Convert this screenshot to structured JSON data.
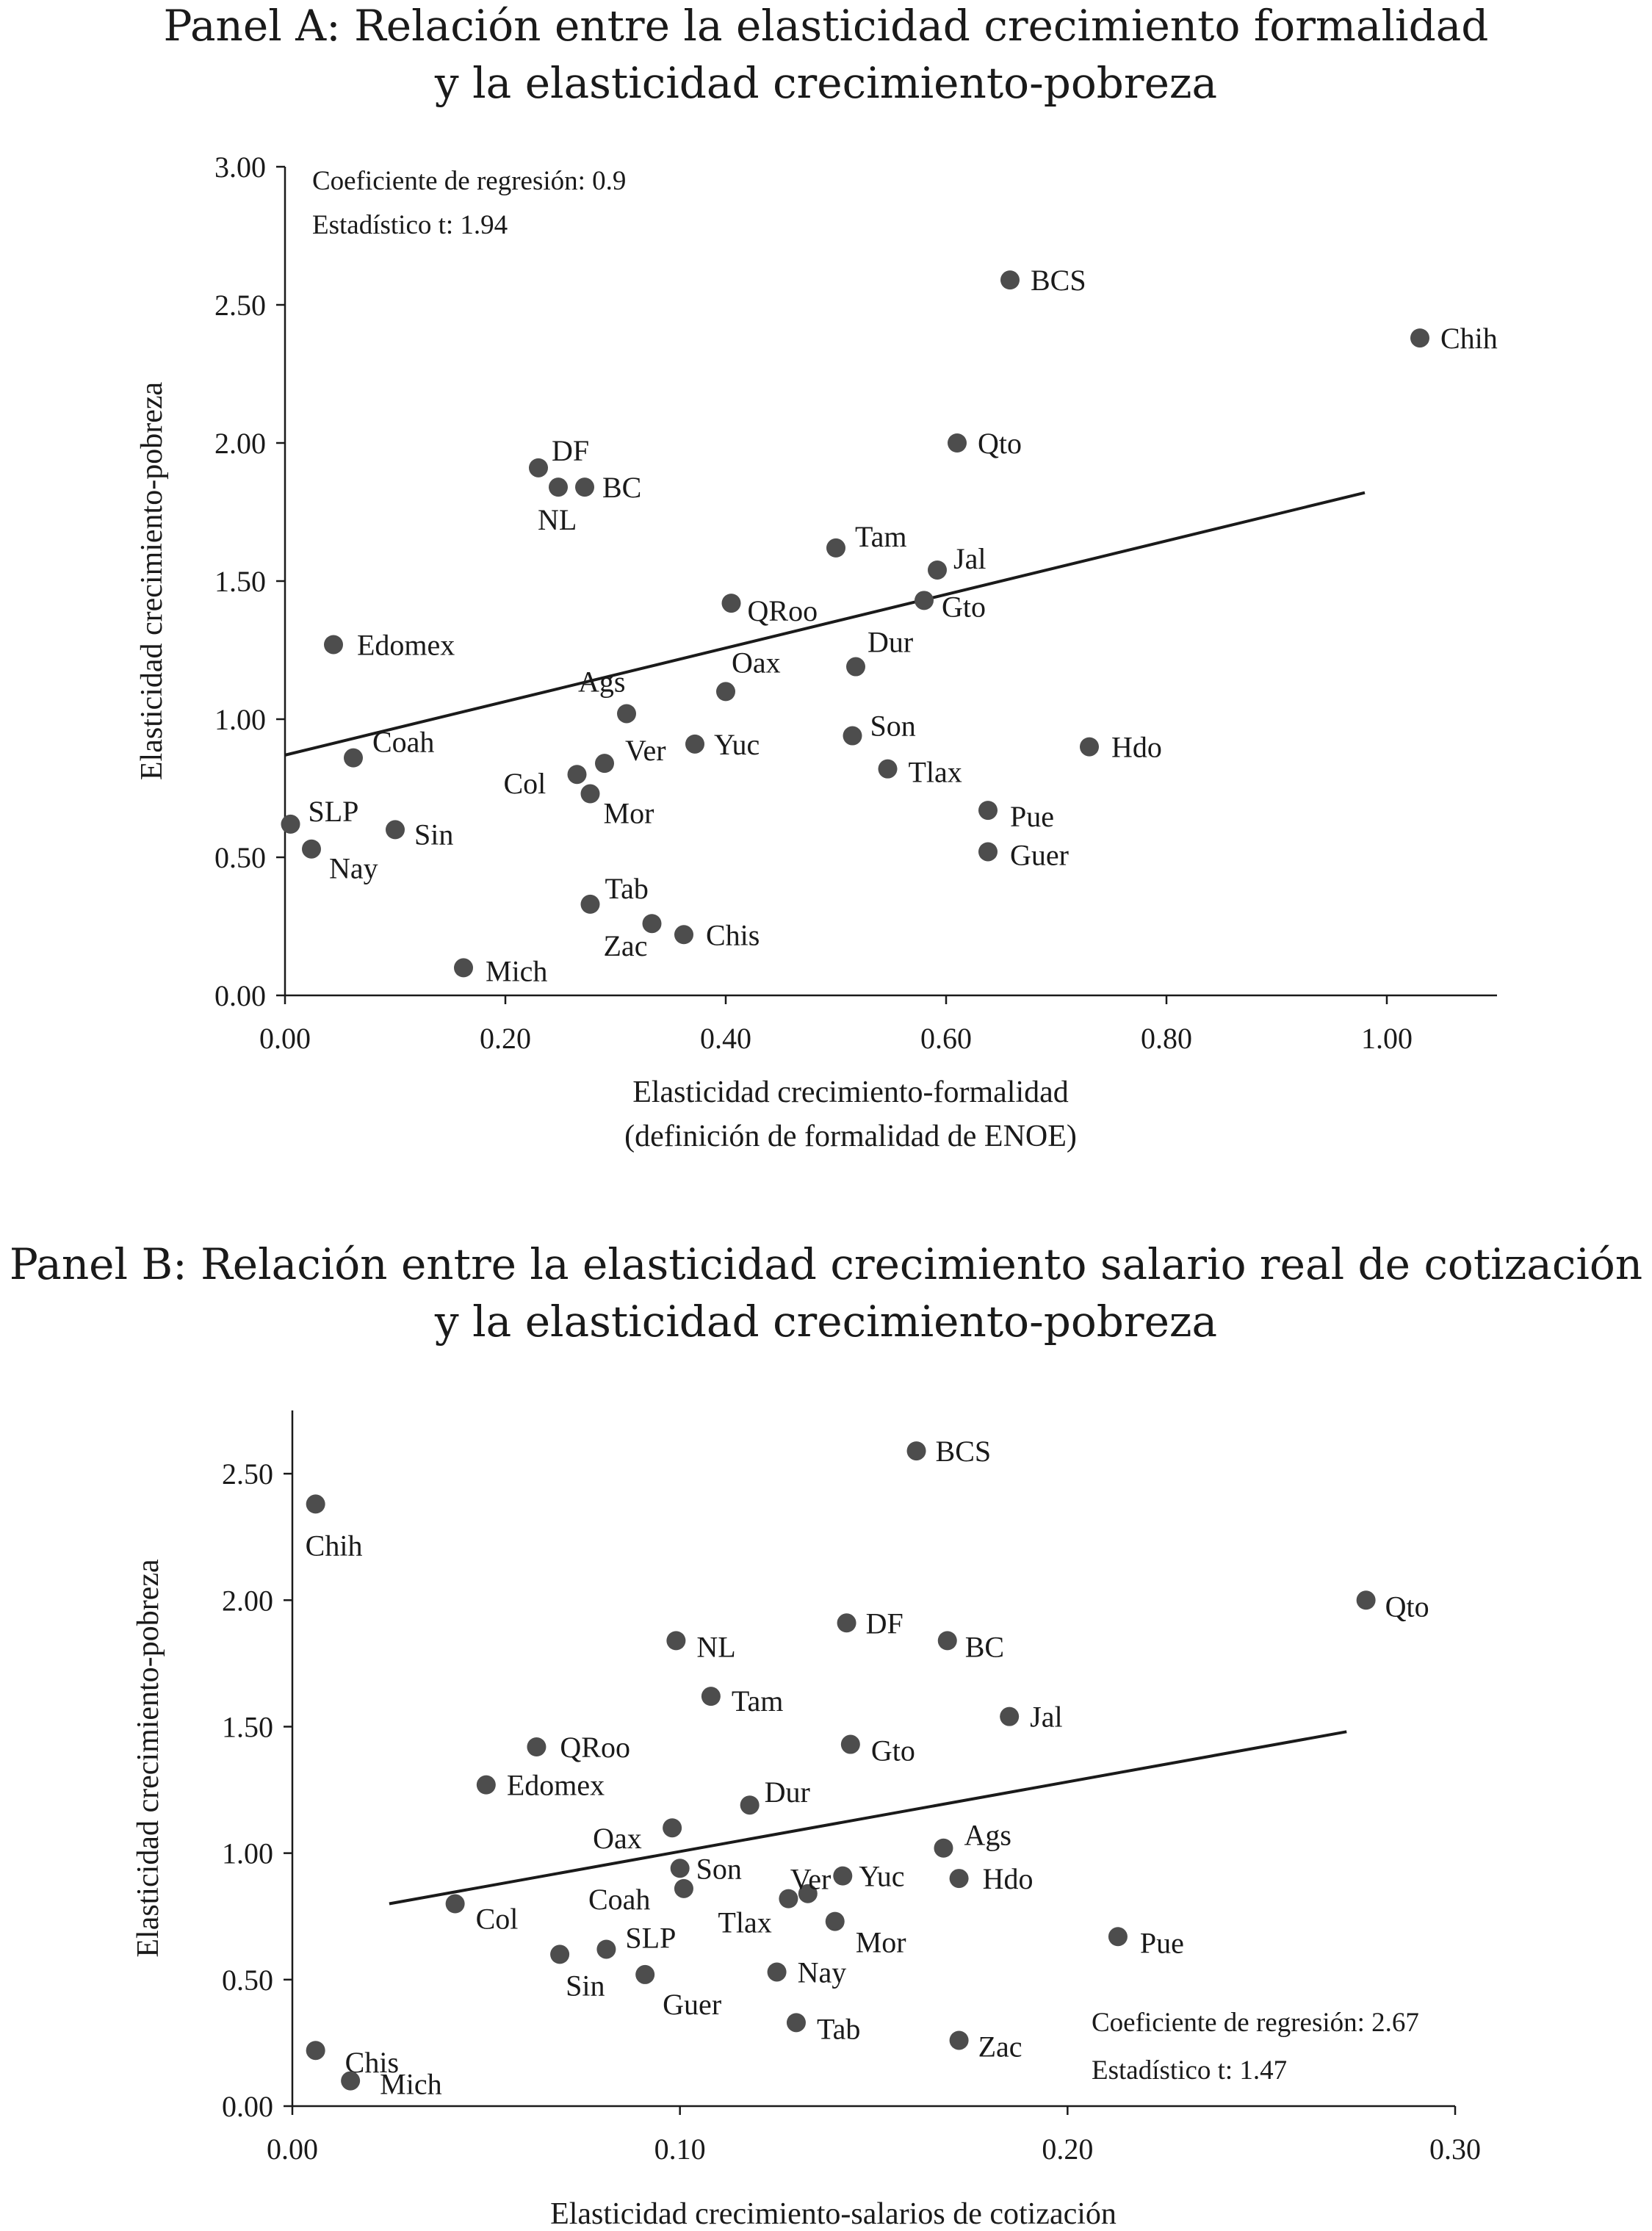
{
  "chart_data": [
    {
      "type": "scatter",
      "title_lines": [
        "Panel A: Relación entre la elasticidad crecimiento formalidad",
        "y la elasticidad crecimiento-pobreza"
      ],
      "xlabel_lines": [
        "Elasticidad crecimiento-formalidad",
        "(definición de formalidad de ENOE)"
      ],
      "ylabel": "Elasticidad crecimiento-pobreza",
      "xlim": [
        0,
        1.1
      ],
      "ylim": [
        0,
        3.0
      ],
      "xticks": [
        "0.00",
        "0.20",
        "0.40",
        "0.60",
        "0.80",
        "1.00"
      ],
      "yticks": [
        "0.00",
        "0.50",
        "1.00",
        "1.50",
        "2.00",
        "2.50",
        "3.00"
      ],
      "annotations": [
        "Coeficiente de regresión: 0.9",
        "Estadístico t: 1.94"
      ],
      "marker_color": "#4d4d4d",
      "regression_line": {
        "x": [
          0.0,
          0.98
        ],
        "y": [
          0.87,
          1.82
        ]
      },
      "points": [
        {
          "label": "BCS",
          "x": 0.658,
          "y": 2.59
        },
        {
          "label": "Chih",
          "x": 1.03,
          "y": 2.38
        },
        {
          "label": "Qto",
          "x": 0.61,
          "y": 2.0
        },
        {
          "label": "DF",
          "x": 0.23,
          "y": 1.91
        },
        {
          "label": "NL",
          "x": 0.248,
          "y": 1.84
        },
        {
          "label": "BC",
          "x": 0.272,
          "y": 1.84
        },
        {
          "label": "Tam",
          "x": 0.5,
          "y": 1.62
        },
        {
          "label": "Jal",
          "x": 0.592,
          "y": 1.54
        },
        {
          "label": "Gto",
          "x": 0.58,
          "y": 1.43
        },
        {
          "label": "QRoo",
          "x": 0.405,
          "y": 1.42
        },
        {
          "label": "Edomex",
          "x": 0.044,
          "y": 1.27
        },
        {
          "label": "Dur",
          "x": 0.518,
          "y": 1.19
        },
        {
          "label": "Oax",
          "x": 0.4,
          "y": 1.1
        },
        {
          "label": "Ags",
          "x": 0.31,
          "y": 1.02
        },
        {
          "label": "Son",
          "x": 0.515,
          "y": 0.94
        },
        {
          "label": "Yuc",
          "x": 0.372,
          "y": 0.91
        },
        {
          "label": "Hdo",
          "x": 0.73,
          "y": 0.9
        },
        {
          "label": "Coah",
          "x": 0.062,
          "y": 0.86
        },
        {
          "label": "Ver",
          "x": 0.29,
          "y": 0.84
        },
        {
          "label": "Tlax",
          "x": 0.547,
          "y": 0.82
        },
        {
          "label": "Col",
          "x": 0.265,
          "y": 0.8
        },
        {
          "label": "Mor",
          "x": 0.277,
          "y": 0.73
        },
        {
          "label": "Pue",
          "x": 0.638,
          "y": 0.67
        },
        {
          "label": "SLP",
          "x": 0.005,
          "y": 0.62
        },
        {
          "label": "Sin",
          "x": 0.1,
          "y": 0.6
        },
        {
          "label": "Nay",
          "x": 0.024,
          "y": 0.53
        },
        {
          "label": "Guer",
          "x": 0.638,
          "y": 0.52
        },
        {
          "label": "Tab",
          "x": 0.277,
          "y": 0.33
        },
        {
          "label": "Zac",
          "x": 0.333,
          "y": 0.26
        },
        {
          "label": "Chis",
          "x": 0.362,
          "y": 0.22
        },
        {
          "label": "Mich",
          "x": 0.162,
          "y": 0.1
        }
      ]
    },
    {
      "type": "scatter",
      "title_lines": [
        "Panel B: Relación entre la elasticidad crecimiento salario real de cotización",
        "y la elasticidad crecimiento-pobreza"
      ],
      "xlabel_lines": [
        "Elasticidad crecimiento-salarios de cotización"
      ],
      "ylabel": "Elasticidad crecimiento-pobreza",
      "xlim": [
        0,
        0.3
      ],
      "ylim": [
        0,
        2.75
      ],
      "xticks": [
        "0.00",
        "0.10",
        "0.20",
        "0.30"
      ],
      "yticks": [
        "0.00",
        "0.50",
        "1.00",
        "1.50",
        "2.00",
        "2.50"
      ],
      "annotations": [
        "Coeficiente de regresión: 2.67",
        "Estadístico t: 1.47"
      ],
      "marker_color": "#4d4d4d",
      "regression_line": {
        "x": [
          0.025,
          0.272
        ],
        "y": [
          0.8,
          1.48
        ]
      },
      "points": [
        {
          "label": "BCS",
          "x": 0.161,
          "y": 2.59
        },
        {
          "label": "Chih",
          "x": 0.006,
          "y": 2.38
        },
        {
          "label": "Qto",
          "x": 0.277,
          "y": 2.0
        },
        {
          "label": "DF",
          "x": 0.143,
          "y": 1.91
        },
        {
          "label": "NL",
          "x": 0.099,
          "y": 1.84
        },
        {
          "label": "BC",
          "x": 0.169,
          "y": 1.84
        },
        {
          "label": "Tam",
          "x": 0.108,
          "y": 1.62
        },
        {
          "label": "Jal",
          "x": 0.185,
          "y": 1.54
        },
        {
          "label": "Gto",
          "x": 0.144,
          "y": 1.43
        },
        {
          "label": "QRoo",
          "x": 0.063,
          "y": 1.42
        },
        {
          "label": "Edomex",
          "x": 0.05,
          "y": 1.27
        },
        {
          "label": "Dur",
          "x": 0.118,
          "y": 1.19
        },
        {
          "label": "Oax",
          "x": 0.098,
          "y": 1.1
        },
        {
          "label": "Ags",
          "x": 0.168,
          "y": 1.02
        },
        {
          "label": "Son",
          "x": 0.1,
          "y": 0.94
        },
        {
          "label": "Yuc",
          "x": 0.142,
          "y": 0.91
        },
        {
          "label": "Hdo",
          "x": 0.172,
          "y": 0.9
        },
        {
          "label": "Coah",
          "x": 0.101,
          "y": 0.86
        },
        {
          "label": "Ver",
          "x": 0.133,
          "y": 0.84
        },
        {
          "label": "Tlax",
          "x": 0.128,
          "y": 0.82
        },
        {
          "label": "Col",
          "x": 0.042,
          "y": 0.8
        },
        {
          "label": "Mor",
          "x": 0.14,
          "y": 0.73
        },
        {
          "label": "Pue",
          "x": 0.213,
          "y": 0.67
        },
        {
          "label": "SLP",
          "x": 0.081,
          "y": 0.62
        },
        {
          "label": "Sin",
          "x": 0.069,
          "y": 0.6
        },
        {
          "label": "Nay",
          "x": 0.125,
          "y": 0.53
        },
        {
          "label": "Guer",
          "x": 0.091,
          "y": 0.52
        },
        {
          "label": "Tab",
          "x": 0.13,
          "y": 0.33
        },
        {
          "label": "Zac",
          "x": 0.172,
          "y": 0.26
        },
        {
          "label": "Chis",
          "x": 0.006,
          "y": 0.22
        },
        {
          "label": "Mich",
          "x": 0.015,
          "y": 0.1
        }
      ]
    }
  ]
}
